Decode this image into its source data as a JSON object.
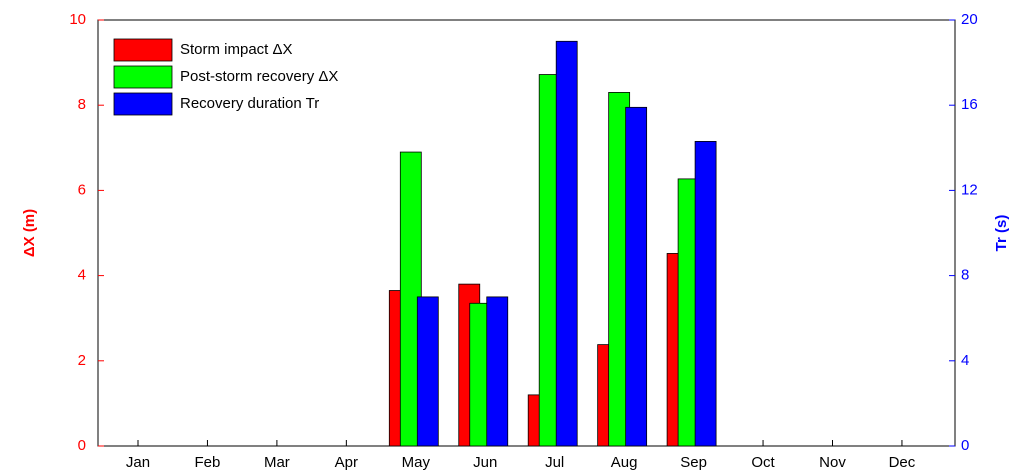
{
  "chart_data": {
    "type": "bar",
    "ylabel": "ΔX (m)",
    "y2label": "Tr (s)",
    "categories": [
      "Jan",
      "Feb",
      "Mar",
      "Apr",
      "May",
      "Jun",
      "Jul",
      "Aug",
      "Sep",
      "Oct",
      "Nov",
      "Dec"
    ],
    "series": [
      {
        "name": "Storm impact ΔX",
        "color": "#ff0000",
        "values": [
          0,
          0,
          0,
          0,
          3.65,
          3.8,
          1.2,
          2.38,
          4.52,
          0,
          0,
          0
        ]
      },
      {
        "name": "Post-storm recovery ΔX",
        "color": "#00ff00",
        "values": [
          0,
          0,
          0,
          0,
          6.9,
          3.35,
          8.72,
          8.3,
          6.27,
          0,
          0,
          0
        ]
      },
      {
        "name": "Recovery duration Tr",
        "color": "#0000ff",
        "axis": "y2",
        "values": [
          0,
          0,
          0,
          0,
          7,
          7,
          19,
          15.9,
          14.3,
          0,
          0,
          0
        ]
      }
    ],
    "ylim": [
      0,
      10
    ],
    "yticks": [
      0,
      2,
      4,
      6,
      8,
      10
    ],
    "ycolor": "#ff0000",
    "y2lim": [
      0,
      20
    ],
    "y2ticks": [
      0,
      4,
      8,
      12,
      16,
      20
    ],
    "y2color": "#0000ff",
    "legend": "upper-left"
  }
}
